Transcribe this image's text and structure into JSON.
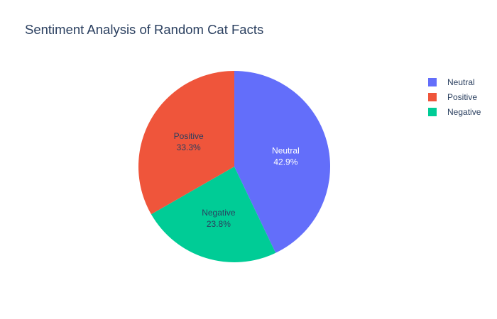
{
  "chart_data": {
    "type": "pie",
    "title": "Sentiment Analysis of Random Cat Facts",
    "slices": [
      {
        "label": "Neutral",
        "percent": 42.9,
        "percent_label": "42.9%",
        "color": "#636efa",
        "text_color": "#ffffff"
      },
      {
        "label": "Negative",
        "percent": 23.8,
        "percent_label": "23.8%",
        "color": "#00cc96",
        "text_color": "#2a3f5f"
      },
      {
        "label": "Positive",
        "percent": 33.3,
        "percent_label": "33.3%",
        "color": "#ef553b",
        "text_color": "#2a3f5f"
      }
    ],
    "legend": {
      "placement": "right",
      "entries": [
        {
          "label": "Neutral",
          "color": "#636efa"
        },
        {
          "label": "Positive",
          "color": "#ef553b"
        },
        {
          "label": "Negative",
          "color": "#00cc96"
        }
      ]
    },
    "start": "12 o'clock",
    "direction": "clockwise"
  }
}
